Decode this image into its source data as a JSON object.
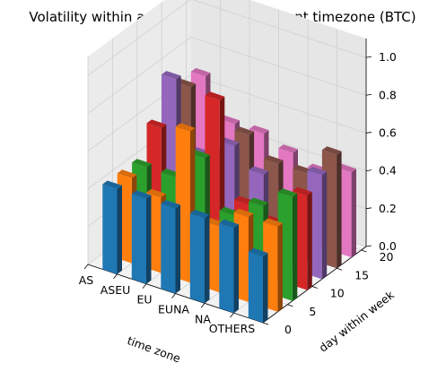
{
  "chart_data": {
    "type": "bar3d",
    "title": "Volatility within a week and with different timezone (BTC)",
    "xlabel": "time zone",
    "ylabel": "day within week",
    "zlabel": "",
    "categories": [
      "AS",
      "ASEU",
      "EU",
      "EUNA",
      "NA",
      "OTHERS"
    ],
    "y_ticks": [
      "0",
      "5",
      "10",
      "15",
      "20"
    ],
    "z_ticks": [
      "0.0",
      "0.2",
      "0.4",
      "0.6",
      "0.8",
      "1.0"
    ],
    "xlim": [
      0,
      6
    ],
    "ylim": [
      0,
      21
    ],
    "zlim": [
      0,
      1.1
    ],
    "grid": true,
    "bar_width": 0.5,
    "bar_depth": 1,
    "series": [
      {
        "day": 0,
        "color": "#1f77b4",
        "values": [
          0.35,
          0.45,
          0.45,
          0.45,
          0.45,
          0.45
        ]
      },
      {
        "day": 3,
        "color": "#ff7f0e",
        "values": [
          0.45,
          0.45,
          0.35,
          0.8,
          0.4,
          0.45
        ]
      },
      {
        "day": 6,
        "color": "#2ca02c",
        "values": [
          0.55,
          0.45,
          0.35,
          0.6,
          0.45,
          0.45
        ]
      },
      {
        "day": 9,
        "color": "#d62728",
        "values": [
          0.5,
          0.3,
          0.35,
          0.85,
          0.55,
          0.6
        ]
      },
      {
        "day": 12,
        "color": "#9467bd",
        "values": [
          0.55,
          0.35,
          0.45,
          0.55,
          0.45,
          0.8
        ]
      },
      {
        "day": 15,
        "color": "#8c564b",
        "values": [
          0.6,
          0.45,
          0.45,
          0.55,
          0.4,
          0.7
        ]
      },
      {
        "day": 18,
        "color": "#e377c2",
        "values": [
          0.45,
          0.4,
          0.45,
          0.5,
          0.5,
          0.7
        ]
      }
    ]
  }
}
